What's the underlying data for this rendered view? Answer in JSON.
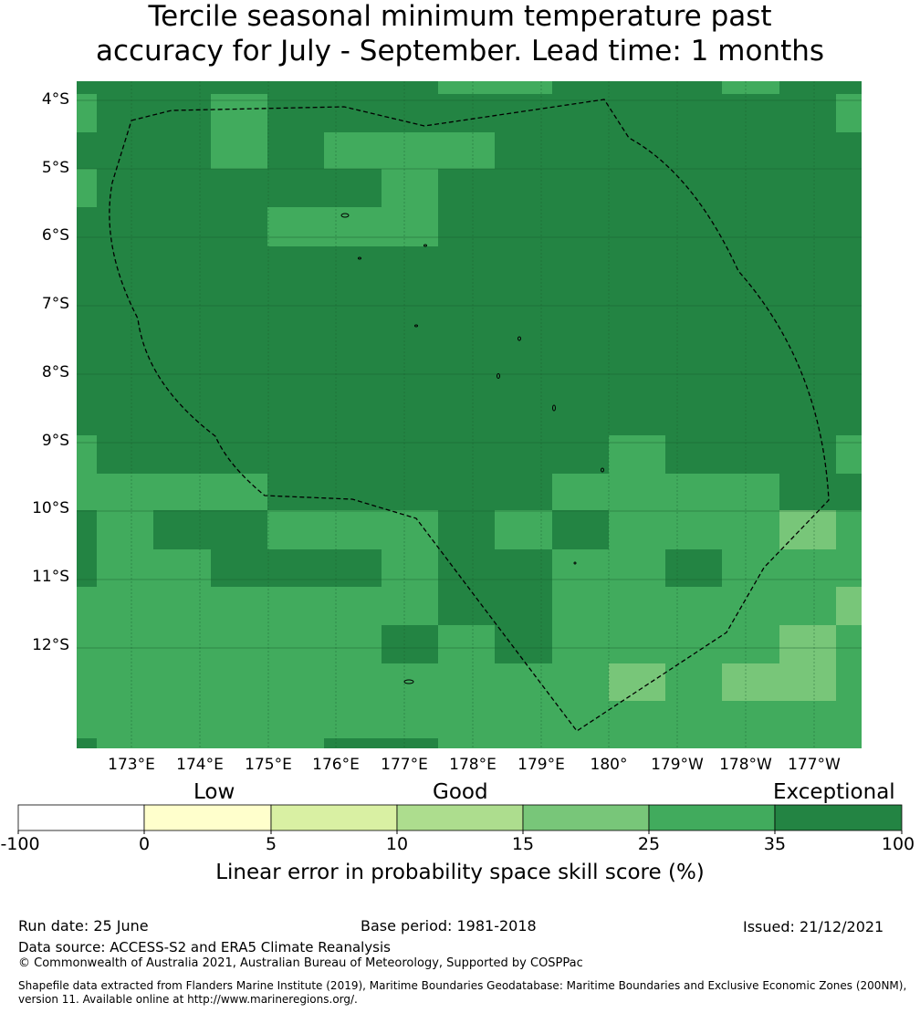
{
  "title": {
    "line1": "Tercile seasonal minimum temperature past",
    "line2": "accuracy for July - September. Lead time: 1 months"
  },
  "map": {
    "latitude_labels": [
      "4°S",
      "5°S",
      "6°S",
      "7°S",
      "8°S",
      "9°S",
      "10°S",
      "11°S",
      "12°S"
    ],
    "longitude_labels": [
      "173°E",
      "174°E",
      "175°E",
      "176°E",
      "177°E",
      "178°E",
      "179°E",
      "180°",
      "179°W",
      "178°W",
      "177°W"
    ],
    "colors": {
      "c10_15": "#aedd94",
      "c15_25": "#78c679",
      "c25_35": "#41ab5d",
      "c35_100": "#238443",
      "outline": "#000000"
    },
    "boundary": "dashed EEZ outline"
  },
  "colorbar": {
    "categories": [
      "Low",
      "Good",
      "Exceptional"
    ],
    "ticks": [
      "-100",
      "0",
      "5",
      "10",
      "15",
      "25",
      "35",
      "100"
    ],
    "colors": [
      "#ffffff",
      "#ffffcc",
      "#d9f0a3",
      "#addd8e",
      "#78c679",
      "#41ab5d",
      "#238443"
    ],
    "label": "Linear error in probability space skill score (%)"
  },
  "footer": {
    "run_date": "Run date: 25 June",
    "base_period": "Base period: 1981-2018",
    "issued": "Issued: 21/12/2021",
    "data_source": "Data source: ACCESS-S2 and ERA5 Climate Reanalysis",
    "copyright": "© Commonwealth of Australia 2021, Australian Bureau of Meteorology, Supported by COSPPac",
    "shapefile": "Shapefile data extracted from Flanders Marine Institute (2019), Maritime Boundaries Geodatabase: Maritime Boundaries and Exclusive Economic Zones (200NM), version 11. Available online at http://www.marineregions.org/."
  }
}
